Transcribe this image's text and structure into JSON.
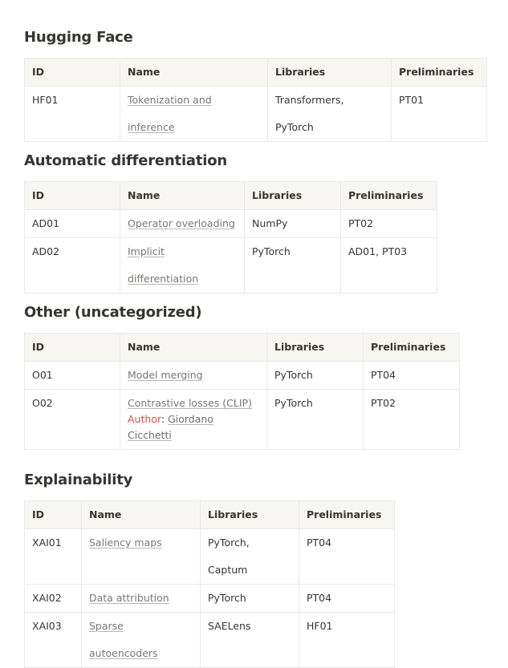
{
  "columns": [
    "ID",
    "Name",
    "Libraries",
    "Preliminaries"
  ],
  "sections": [
    {
      "title": "Hugging Face",
      "rows": [
        {
          "id": "HF01",
          "name": "Tokenization and inference",
          "libraries": "Transformers, PyTorch",
          "preliminaries": "PT01"
        }
      ]
    },
    {
      "title": "Automatic differentiation",
      "rows": [
        {
          "id": "AD01",
          "name": "Operator overloading",
          "libraries": "NumPy",
          "preliminaries": "PT02"
        },
        {
          "id": "AD02",
          "name": "Implicit differentiation",
          "libraries": "PyTorch",
          "preliminaries": "AD01, PT03"
        }
      ]
    },
    {
      "title": "Other (uncategorized)",
      "rows": [
        {
          "id": "O01",
          "name": "Model merging",
          "libraries": "PyTorch",
          "preliminaries": "PT04"
        },
        {
          "id": "O02",
          "name": "Contrastive losses (CLIP)",
          "author_label": "Author",
          "author_sep": ": ",
          "author": "Giordano Cicchetti",
          "libraries": "PyTorch",
          "preliminaries": "PT02"
        }
      ]
    },
    {
      "title": "Explainability",
      "rows": [
        {
          "id": "XAI01",
          "name": "Saliency maps",
          "libraries": "PyTorch, Captum",
          "preliminaries": "PT04"
        },
        {
          "id": "XAI02",
          "name": "Data attribution",
          "libraries": "PyTorch",
          "preliminaries": "PT04"
        },
        {
          "id": "XAI03",
          "name": "Sparse autoencoders",
          "libraries": "SAELens",
          "preliminaries": "HF01"
        }
      ]
    }
  ]
}
